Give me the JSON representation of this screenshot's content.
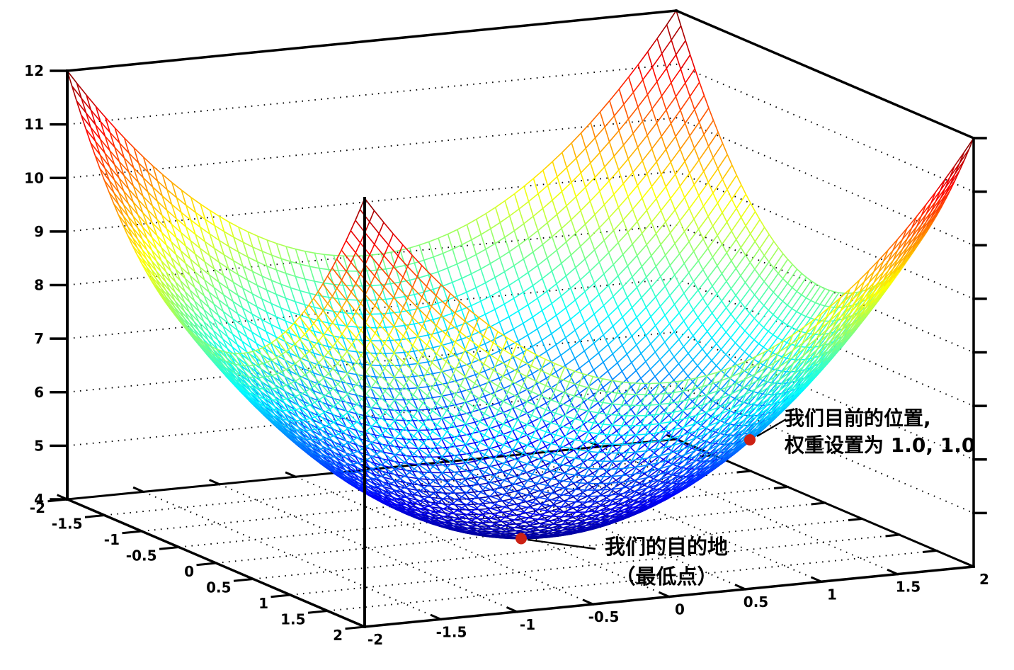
{
  "figure": {
    "background": "#ffffff",
    "axis_color": "#000000",
    "grid_dot_color": "#000000",
    "leader_color": "#000000"
  },
  "chart_data": {
    "type": "surface",
    "style": "3d-wireframe",
    "title": "",
    "surface": {
      "z_function": "z = x^2 + y^2 + 4",
      "z_coeffs": {
        "x2": 1,
        "y2": 1,
        "c": 4
      },
      "x_range": [
        -2,
        2
      ],
      "y_range": [
        -2,
        2
      ],
      "z_range": [
        4,
        12
      ],
      "grid_step": 0.0625,
      "colormap": "jet"
    },
    "axes": {
      "x_ticks": [
        -2,
        -1.5,
        -1,
        -0.5,
        0,
        0.5,
        1,
        1.5,
        2
      ],
      "y_ticks": [
        -2,
        -1.5,
        -1,
        -0.5,
        0,
        0.5,
        1,
        1.5,
        2
      ],
      "z_ticks": [
        4,
        5,
        6,
        7,
        8,
        9,
        10,
        11,
        12
      ],
      "floor_grid": "dotted",
      "wall_grid": "dotted"
    },
    "points": [
      {
        "x": 1.0,
        "y": 1.0,
        "z": 6.0,
        "marker": "dot",
        "color": "#cc2114",
        "label_line1": "我们目前的位置,",
        "label_line2": "权重设置为 1.0, 1.0"
      },
      {
        "x": 0.0,
        "y": 0.0,
        "z": 4.0,
        "marker": "dot",
        "color": "#cc2114",
        "label_line1": "我们的目的地",
        "label_line2": "（最低点）"
      }
    ]
  }
}
